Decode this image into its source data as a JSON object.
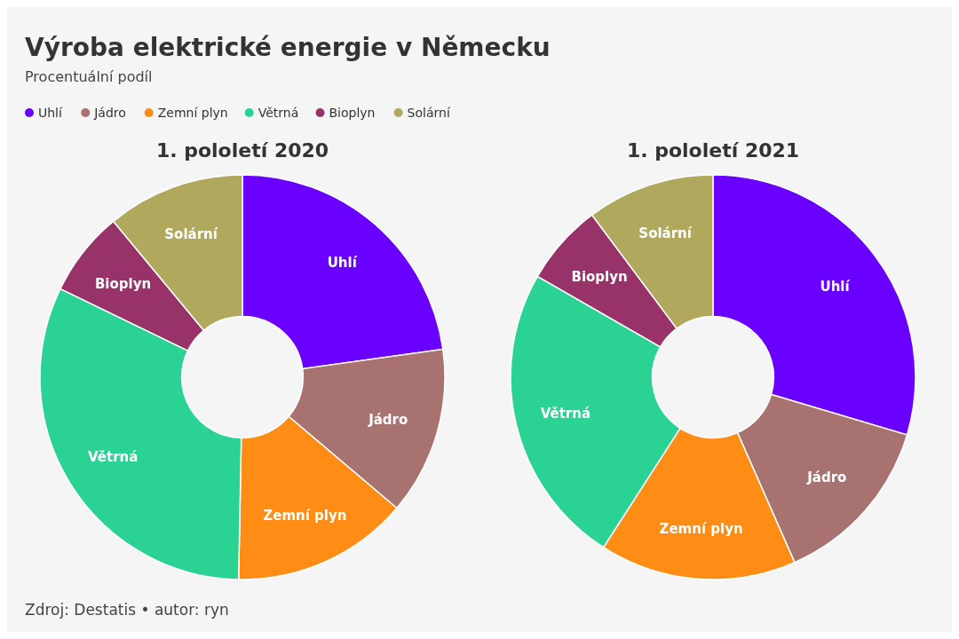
{
  "chart_data": [
    {
      "type": "donut",
      "title": "1. pololetí 2020",
      "annotations": [
        "Výroba elektrické energie v Německu",
        "Procentuální podíl",
        "Zdroj: Destatis • autor: ryn"
      ],
      "legend": "top left",
      "categories": [
        "Uhlí",
        "Jádro",
        "Zemní plyn",
        "Větrná",
        "Bioplyn",
        "Solární"
      ],
      "values": [
        22.8,
        13.4,
        14.1,
        31.9,
        6.8,
        11.0
      ],
      "colors": [
        "#6a00ff",
        "#a87270",
        "#ff8c14",
        "#2ad394",
        "#973369",
        "#b0a85c"
      ]
    },
    {
      "type": "donut",
      "title": "1. pololetí 2021",
      "categories": [
        "Uhlí",
        "Jádro",
        "Zemní plyn",
        "Větrná",
        "Bioplyn",
        "Solární"
      ],
      "values": [
        29.6,
        13.8,
        15.7,
        24.2,
        6.5,
        10.2
      ],
      "colors": [
        "#6a00ff",
        "#a87270",
        "#ff8c14",
        "#2ad394",
        "#973369",
        "#b0a85c"
      ]
    }
  ]
}
